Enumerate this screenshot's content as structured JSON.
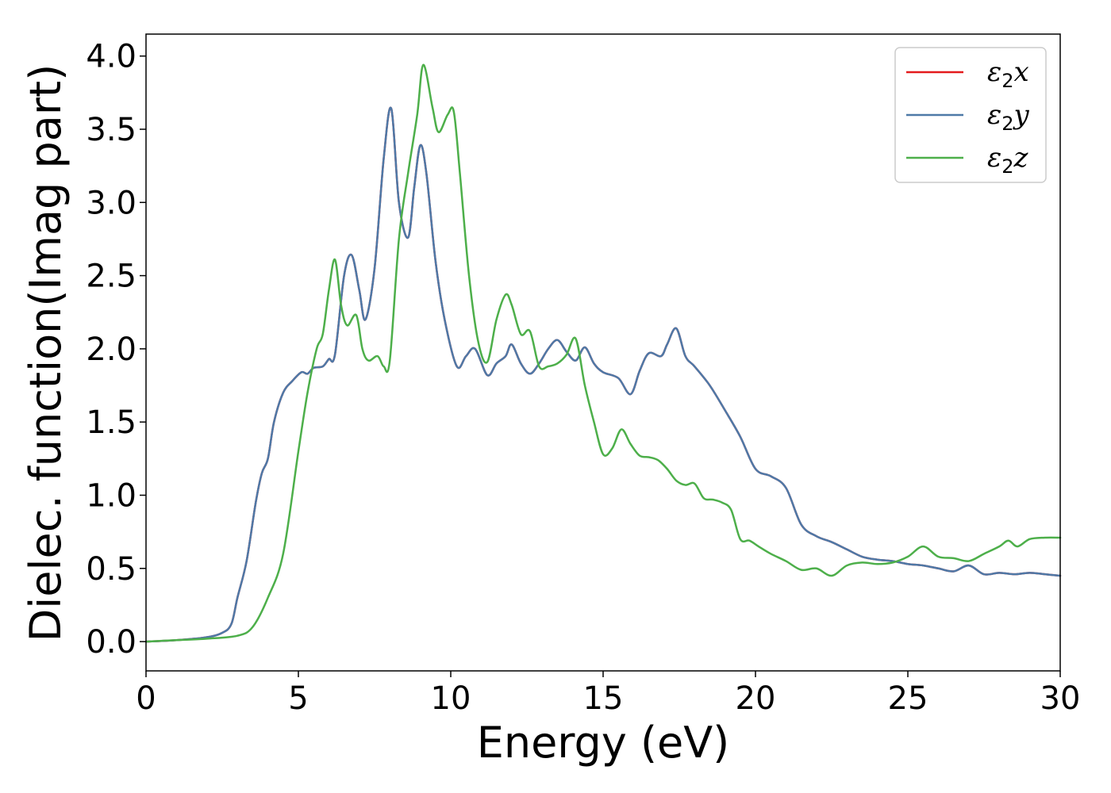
{
  "chart_data": {
    "type": "line",
    "title": "",
    "xlabel": "Energy (eV)",
    "ylabel": "Dielec. function(Imag part)",
    "xlim": [
      0,
      30
    ],
    "ylim": [
      -0.2,
      4.15
    ],
    "x_ticks": [
      "0",
      "5",
      "10",
      "15",
      "20",
      "25",
      "30"
    ],
    "y_ticks": [
      "0.0",
      "0.5",
      "1.0",
      "1.5",
      "2.0",
      "2.5",
      "3.0",
      "3.5",
      "4.0"
    ],
    "grid": false,
    "legend_position": "top-right",
    "series": [
      {
        "name": "ε2x",
        "name_base": "ε",
        "name_sub": "2",
        "name_var": "x",
        "color": "#e41a1c",
        "x": [
          0,
          1,
          2,
          2.5,
          2.8,
          3.0,
          3.3,
          3.6,
          3.8,
          4.0,
          4.2,
          4.5,
          4.8,
          5.1,
          5.3,
          5.5,
          5.8,
          6.0,
          6.2,
          6.5,
          6.75,
          7.0,
          7.2,
          7.5,
          7.8,
          8.05,
          8.3,
          8.6,
          8.8,
          9.0,
          9.2,
          9.5,
          9.8,
          10.2,
          10.5,
          10.8,
          11.2,
          11.5,
          11.8,
          12.0,
          12.3,
          12.6,
          12.9,
          13.2,
          13.5,
          13.8,
          14.1,
          14.4,
          14.7,
          15.0,
          15.5,
          15.9,
          16.2,
          16.5,
          16.9,
          17.1,
          17.4,
          17.7,
          18.0,
          18.5,
          19.0,
          19.5,
          20.0,
          20.5,
          21.0,
          21.5,
          22.0,
          22.5,
          23.0,
          23.5,
          24.0,
          24.5,
          25.0,
          25.5,
          26.0,
          26.5,
          27.0,
          27.5,
          28.0,
          28.5,
          29.0,
          29.5,
          30.0
        ],
        "y": [
          0.0,
          0.01,
          0.03,
          0.06,
          0.12,
          0.3,
          0.55,
          0.95,
          1.15,
          1.25,
          1.5,
          1.7,
          1.78,
          1.84,
          1.83,
          1.87,
          1.88,
          1.93,
          1.96,
          2.5,
          2.64,
          2.4,
          2.2,
          2.55,
          3.3,
          3.64,
          3.0,
          2.76,
          3.1,
          3.39,
          3.2,
          2.6,
          2.2,
          1.88,
          1.95,
          2.0,
          1.82,
          1.9,
          1.95,
          2.03,
          1.9,
          1.83,
          1.9,
          2.0,
          2.06,
          1.98,
          1.92,
          2.01,
          1.9,
          1.84,
          1.8,
          1.69,
          1.85,
          1.97,
          1.95,
          2.03,
          2.14,
          1.95,
          1.88,
          1.75,
          1.58,
          1.4,
          1.18,
          1.13,
          1.05,
          0.8,
          0.72,
          0.68,
          0.63,
          0.58,
          0.56,
          0.55,
          0.53,
          0.52,
          0.5,
          0.48,
          0.52,
          0.46,
          0.47,
          0.46,
          0.47,
          0.46,
          0.45
        ]
      },
      {
        "name": "ε2y",
        "name_base": "ε",
        "name_sub": "2",
        "name_var": "y",
        "color": "#4e79a7",
        "x": [
          0,
          1,
          2,
          2.5,
          2.8,
          3.0,
          3.3,
          3.6,
          3.8,
          4.0,
          4.2,
          4.5,
          4.8,
          5.1,
          5.3,
          5.5,
          5.8,
          6.0,
          6.2,
          6.5,
          6.75,
          7.0,
          7.2,
          7.5,
          7.8,
          8.05,
          8.3,
          8.6,
          8.8,
          9.0,
          9.2,
          9.5,
          9.8,
          10.2,
          10.5,
          10.8,
          11.2,
          11.5,
          11.8,
          12.0,
          12.3,
          12.6,
          12.9,
          13.2,
          13.5,
          13.8,
          14.1,
          14.4,
          14.7,
          15.0,
          15.5,
          15.9,
          16.2,
          16.5,
          16.9,
          17.1,
          17.4,
          17.7,
          18.0,
          18.5,
          19.0,
          19.5,
          20.0,
          20.5,
          21.0,
          21.5,
          22.0,
          22.5,
          23.0,
          23.5,
          24.0,
          24.5,
          25.0,
          25.5,
          26.0,
          26.5,
          27.0,
          27.5,
          28.0,
          28.5,
          29.0,
          29.5,
          30.0
        ],
        "y": [
          0.0,
          0.01,
          0.03,
          0.06,
          0.12,
          0.3,
          0.55,
          0.95,
          1.15,
          1.25,
          1.5,
          1.7,
          1.78,
          1.84,
          1.83,
          1.87,
          1.88,
          1.93,
          1.96,
          2.5,
          2.64,
          2.4,
          2.2,
          2.55,
          3.3,
          3.64,
          3.0,
          2.76,
          3.1,
          3.39,
          3.2,
          2.6,
          2.2,
          1.88,
          1.95,
          2.0,
          1.82,
          1.9,
          1.95,
          2.03,
          1.9,
          1.83,
          1.9,
          2.0,
          2.06,
          1.98,
          1.92,
          2.01,
          1.9,
          1.84,
          1.8,
          1.69,
          1.85,
          1.97,
          1.95,
          2.03,
          2.14,
          1.95,
          1.88,
          1.75,
          1.58,
          1.4,
          1.18,
          1.13,
          1.05,
          0.8,
          0.72,
          0.68,
          0.63,
          0.58,
          0.56,
          0.55,
          0.53,
          0.52,
          0.5,
          0.48,
          0.52,
          0.46,
          0.47,
          0.46,
          0.47,
          0.46,
          0.45
        ]
      },
      {
        "name": "ε2z",
        "name_base": "ε",
        "name_sub": "2",
        "name_var": "z",
        "color": "#4daf4a",
        "x": [
          0,
          1,
          2,
          3.0,
          3.5,
          4.0,
          4.5,
          5.0,
          5.3,
          5.6,
          5.8,
          6.0,
          6.2,
          6.4,
          6.6,
          6.9,
          7.1,
          7.3,
          7.6,
          7.8,
          8.0,
          8.3,
          8.6,
          8.9,
          9.1,
          9.4,
          9.6,
          9.9,
          10.1,
          10.3,
          10.6,
          10.9,
          11.2,
          11.5,
          11.8,
          12.0,
          12.3,
          12.6,
          12.9,
          13.2,
          13.5,
          13.8,
          14.1,
          14.4,
          14.7,
          15.0,
          15.3,
          15.6,
          15.9,
          16.2,
          16.5,
          16.8,
          17.1,
          17.4,
          17.7,
          18.0,
          18.3,
          18.6,
          18.9,
          19.2,
          19.5,
          19.8,
          20.1,
          20.5,
          21.0,
          21.5,
          22.0,
          22.5,
          23.0,
          23.5,
          24.0,
          24.5,
          25.0,
          25.5,
          26.0,
          26.5,
          27.0,
          27.5,
          28.0,
          28.3,
          28.6,
          29.0,
          29.5,
          30.0
        ],
        "y": [
          0.0,
          0.01,
          0.02,
          0.04,
          0.1,
          0.3,
          0.6,
          1.3,
          1.7,
          2.0,
          2.1,
          2.4,
          2.61,
          2.3,
          2.16,
          2.23,
          2.0,
          1.92,
          1.95,
          1.88,
          1.92,
          2.75,
          3.2,
          3.6,
          3.94,
          3.65,
          3.48,
          3.6,
          3.62,
          3.2,
          2.5,
          2.05,
          1.91,
          2.2,
          2.37,
          2.3,
          2.1,
          2.12,
          1.88,
          1.88,
          1.9,
          1.96,
          2.07,
          1.75,
          1.5,
          1.28,
          1.32,
          1.45,
          1.35,
          1.27,
          1.26,
          1.24,
          1.18,
          1.1,
          1.07,
          1.08,
          0.98,
          0.97,
          0.95,
          0.9,
          0.7,
          0.69,
          0.65,
          0.6,
          0.55,
          0.49,
          0.5,
          0.45,
          0.52,
          0.54,
          0.53,
          0.54,
          0.58,
          0.65,
          0.58,
          0.57,
          0.55,
          0.6,
          0.65,
          0.69,
          0.65,
          0.7,
          0.71,
          0.71
        ]
      }
    ]
  }
}
